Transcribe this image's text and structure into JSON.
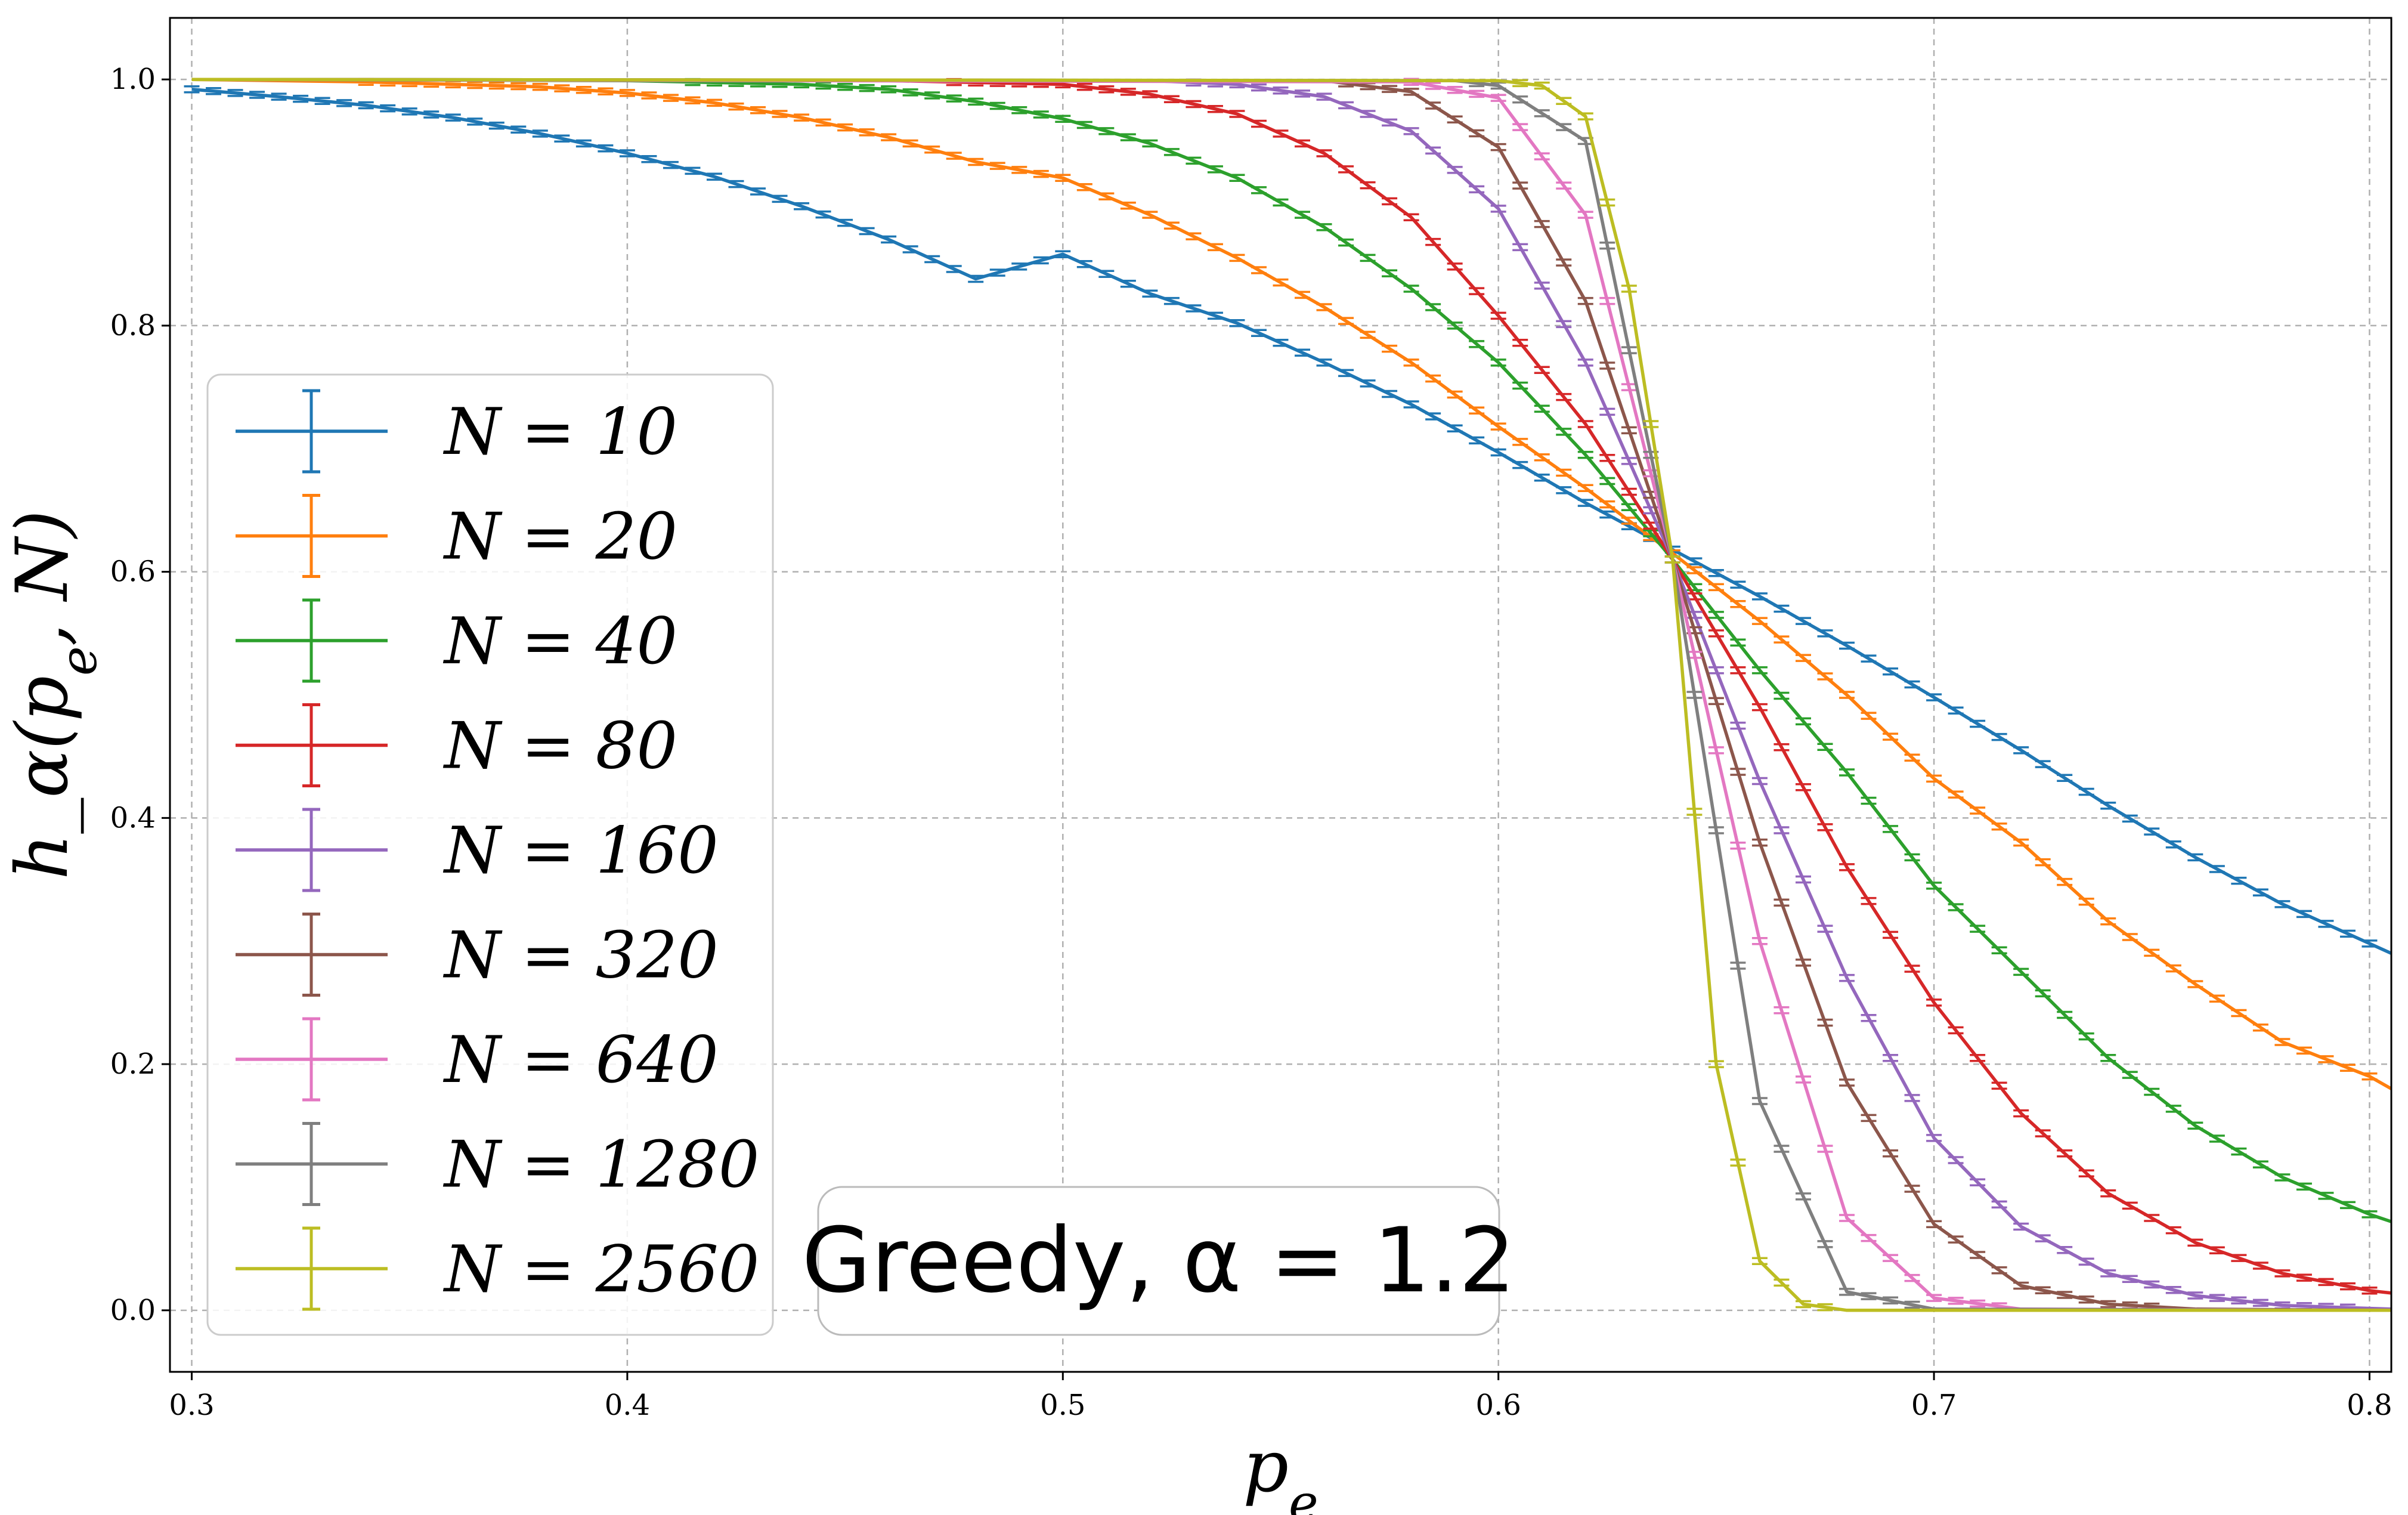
{
  "chart_data": {
    "type": "line",
    "xlabel": "p_e",
    "ylabel": "h_α(p_e, N)",
    "xlim": [
      0.295,
      0.805
    ],
    "ylim": [
      -0.05,
      1.05
    ],
    "xticks": [
      "0.3",
      "0.4",
      "0.5",
      "0.6",
      "0.7",
      "0.8"
    ],
    "yticks": [
      "0.0",
      "0.2",
      "0.4",
      "0.6",
      "0.8",
      "1.0"
    ],
    "grid": true,
    "legend_position": "center-left",
    "annotation": "Greedy, α = 1.2",
    "series": [
      {
        "name": "N = 10",
        "color": "#1f77b4",
        "values": [
          [
            0.3,
            0.992
          ],
          [
            0.32,
            0.986
          ],
          [
            0.34,
            0.979
          ],
          [
            0.36,
            0.969
          ],
          [
            0.38,
            0.956
          ],
          [
            0.4,
            0.94
          ],
          [
            0.42,
            0.921
          ],
          [
            0.44,
            0.897
          ],
          [
            0.46,
            0.87
          ],
          [
            0.48,
            0.838
          ],
          [
            0.5,
            0.858
          ],
          [
            0.52,
            0.826
          ],
          [
            0.54,
            0.802
          ],
          [
            0.56,
            0.77
          ],
          [
            0.58,
            0.736
          ],
          [
            0.6,
            0.697
          ],
          [
            0.62,
            0.656
          ],
          [
            0.64,
            0.618
          ],
          [
            0.66,
            0.58
          ],
          [
            0.68,
            0.54
          ],
          [
            0.7,
            0.498
          ],
          [
            0.72,
            0.455
          ],
          [
            0.74,
            0.41
          ],
          [
            0.76,
            0.368
          ],
          [
            0.78,
            0.33
          ],
          [
            0.8,
            0.298
          ],
          [
            0.805,
            0.29
          ]
        ]
      },
      {
        "name": "N = 20",
        "color": "#ff7f0e",
        "values": [
          [
            0.3,
            1.0
          ],
          [
            0.34,
            0.998
          ],
          [
            0.38,
            0.994
          ],
          [
            0.4,
            0.989
          ],
          [
            0.42,
            0.981
          ],
          [
            0.44,
            0.969
          ],
          [
            0.46,
            0.953
          ],
          [
            0.48,
            0.933
          ],
          [
            0.5,
            0.92
          ],
          [
            0.52,
            0.89
          ],
          [
            0.54,
            0.855
          ],
          [
            0.56,
            0.815
          ],
          [
            0.58,
            0.77
          ],
          [
            0.6,
            0.718
          ],
          [
            0.62,
            0.668
          ],
          [
            0.64,
            0.615
          ],
          [
            0.66,
            0.56
          ],
          [
            0.68,
            0.5
          ],
          [
            0.7,
            0.432
          ],
          [
            0.72,
            0.38
          ],
          [
            0.74,
            0.316
          ],
          [
            0.76,
            0.265
          ],
          [
            0.78,
            0.218
          ],
          [
            0.8,
            0.19
          ],
          [
            0.805,
            0.18
          ]
        ]
      },
      {
        "name": "N = 40",
        "color": "#2ca02c",
        "values": [
          [
            0.3,
            1.0
          ],
          [
            0.4,
            0.999
          ],
          [
            0.44,
            0.996
          ],
          [
            0.46,
            0.992
          ],
          [
            0.48,
            0.982
          ],
          [
            0.5,
            0.968
          ],
          [
            0.52,
            0.948
          ],
          [
            0.54,
            0.92
          ],
          [
            0.56,
            0.88
          ],
          [
            0.58,
            0.83
          ],
          [
            0.6,
            0.77
          ],
          [
            0.62,
            0.695
          ],
          [
            0.64,
            0.61
          ],
          [
            0.66,
            0.52
          ],
          [
            0.68,
            0.437
          ],
          [
            0.7,
            0.345
          ],
          [
            0.72,
            0.275
          ],
          [
            0.74,
            0.205
          ],
          [
            0.76,
            0.15
          ],
          [
            0.78,
            0.108
          ],
          [
            0.8,
            0.078
          ],
          [
            0.805,
            0.072
          ]
        ]
      },
      {
        "name": "N = 80",
        "color": "#d62728",
        "values": [
          [
            0.3,
            1.0
          ],
          [
            0.46,
            0.999
          ],
          [
            0.5,
            0.996
          ],
          [
            0.52,
            0.988
          ],
          [
            0.54,
            0.972
          ],
          [
            0.56,
            0.94
          ],
          [
            0.58,
            0.888
          ],
          [
            0.6,
            0.808
          ],
          [
            0.62,
            0.72
          ],
          [
            0.64,
            0.61
          ],
          [
            0.66,
            0.49
          ],
          [
            0.68,
            0.36
          ],
          [
            0.7,
            0.25
          ],
          [
            0.72,
            0.16
          ],
          [
            0.74,
            0.095
          ],
          [
            0.76,
            0.055
          ],
          [
            0.78,
            0.03
          ],
          [
            0.8,
            0.016
          ],
          [
            0.805,
            0.014
          ]
        ]
      },
      {
        "name": "N = 160",
        "color": "#9467bd",
        "values": [
          [
            0.3,
            1.0
          ],
          [
            0.52,
            0.999
          ],
          [
            0.54,
            0.996
          ],
          [
            0.56,
            0.986
          ],
          [
            0.58,
            0.958
          ],
          [
            0.6,
            0.895
          ],
          [
            0.62,
            0.77
          ],
          [
            0.64,
            0.61
          ],
          [
            0.66,
            0.43
          ],
          [
            0.68,
            0.27
          ],
          [
            0.7,
            0.14
          ],
          [
            0.72,
            0.068
          ],
          [
            0.74,
            0.03
          ],
          [
            0.76,
            0.012
          ],
          [
            0.78,
            0.004
          ],
          [
            0.805,
            0.001
          ]
        ]
      },
      {
        "name": "N = 320",
        "color": "#8c564b",
        "values": [
          [
            0.3,
            1.0
          ],
          [
            0.56,
            0.999
          ],
          [
            0.58,
            0.99
          ],
          [
            0.6,
            0.945
          ],
          [
            0.62,
            0.82
          ],
          [
            0.64,
            0.61
          ],
          [
            0.66,
            0.38
          ],
          [
            0.68,
            0.185
          ],
          [
            0.7,
            0.07
          ],
          [
            0.72,
            0.02
          ],
          [
            0.74,
            0.005
          ],
          [
            0.76,
            0.001
          ],
          [
            0.805,
            0.0
          ]
        ]
      },
      {
        "name": "N = 640",
        "color": "#e377c2",
        "values": [
          [
            0.3,
            1.0
          ],
          [
            0.58,
            0.998
          ],
          [
            0.6,
            0.985
          ],
          [
            0.62,
            0.89
          ],
          [
            0.64,
            0.61
          ],
          [
            0.66,
            0.3
          ],
          [
            0.68,
            0.075
          ],
          [
            0.7,
            0.01
          ],
          [
            0.72,
            0.001
          ],
          [
            0.805,
            0.0
          ]
        ]
      },
      {
        "name": "N = 1280",
        "color": "#7f7f7f",
        "values": [
          [
            0.3,
            1.0
          ],
          [
            0.59,
            0.999
          ],
          [
            0.6,
            0.995
          ],
          [
            0.62,
            0.95
          ],
          [
            0.64,
            0.61
          ],
          [
            0.66,
            0.17
          ],
          [
            0.68,
            0.015
          ],
          [
            0.7,
            0.001
          ],
          [
            0.805,
            0.0
          ]
        ]
      },
      {
        "name": "N = 2560",
        "color": "#bcbd22",
        "values": [
          [
            0.3,
            1.0
          ],
          [
            0.6,
            0.999
          ],
          [
            0.61,
            0.995
          ],
          [
            0.62,
            0.97
          ],
          [
            0.63,
            0.83
          ],
          [
            0.64,
            0.61
          ],
          [
            0.65,
            0.2
          ],
          [
            0.66,
            0.04
          ],
          [
            0.67,
            0.005
          ],
          [
            0.68,
            0.0
          ],
          [
            0.805,
            0.0
          ]
        ]
      }
    ]
  }
}
